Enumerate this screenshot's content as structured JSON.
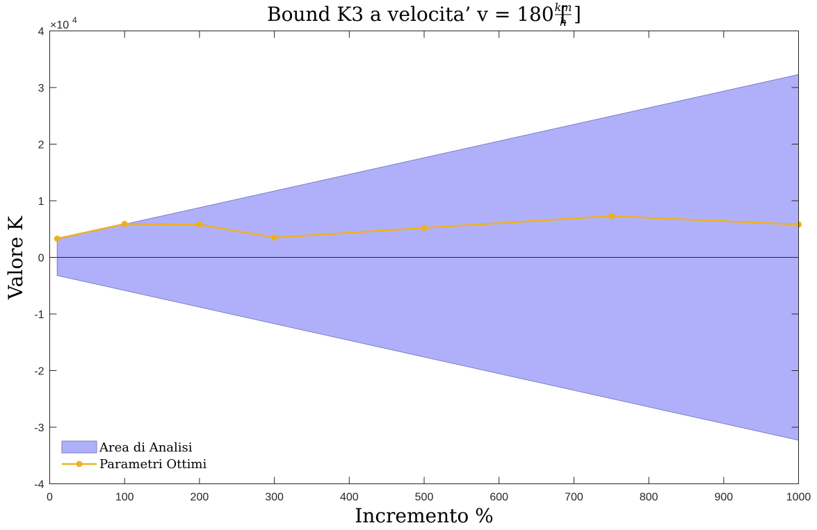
{
  "chart_data": {
    "type": "area",
    "title_main": "Bound K3 a velocita’ v = 180 [",
    "title_frac_num": "km",
    "title_frac_den": "h",
    "title_close": "]",
    "xlabel": "Incremento %",
    "ylabel": "Valore K",
    "xlim": [
      0,
      1000
    ],
    "ylim": [
      -40000,
      40000
    ],
    "x_ticks": [
      0,
      100,
      200,
      300,
      400,
      500,
      600,
      700,
      800,
      900,
      1000
    ],
    "x_tick_labels": [
      "0",
      "100",
      "200",
      "300",
      "400",
      "500",
      "600",
      "700",
      "800",
      "900",
      "1000"
    ],
    "y_ticks": [
      -40000,
      -30000,
      -20000,
      -10000,
      0,
      10000,
      20000,
      30000,
      40000
    ],
    "y_tick_labels": [
      "-4",
      "-3",
      "-2",
      "-1",
      "0",
      "1",
      "2",
      "3",
      "4"
    ],
    "y_exponent_base": "×10",
    "y_exponent_power": "4",
    "grid": false,
    "legend_position": "bottom-left",
    "zero_line": true,
    "series": [
      {
        "name": "Area di Analisi",
        "kind": "band",
        "color": "#b0b0fa",
        "edge_color": "#7a7ac8",
        "x": [
          10,
          1000
        ],
        "upper": [
          3200,
          32300
        ],
        "lower": [
          -3200,
          -32300
        ]
      },
      {
        "name": "Parametri Ottimi",
        "kind": "line",
        "color": "#edb120",
        "x": [
          10,
          100,
          200,
          300,
          500,
          750,
          1000
        ],
        "y": [
          3300,
          5900,
          5800,
          3500,
          5200,
          7300,
          5800
        ]
      }
    ]
  }
}
